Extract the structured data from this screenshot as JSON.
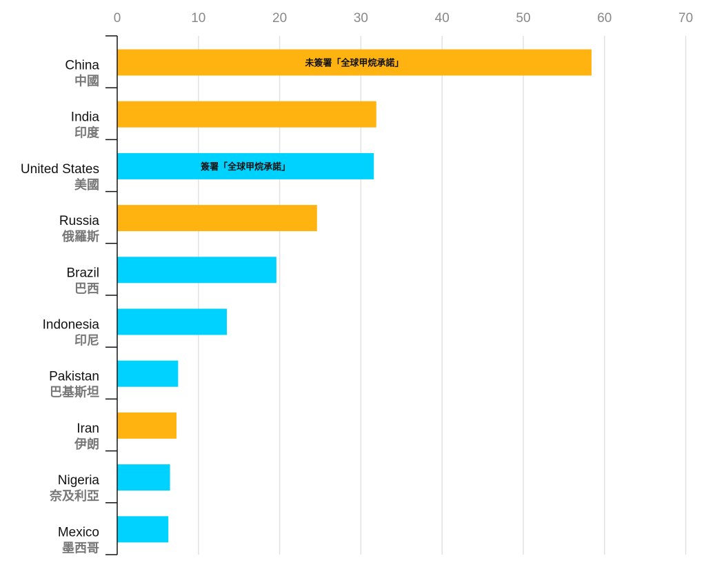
{
  "colors": {
    "not_signed": "#FFB311",
    "signed": "#00D2FF",
    "grid": "#e2e2e2",
    "axis": "#111111"
  },
  "chart_data": {
    "type": "bar",
    "orientation": "horizontal",
    "categories": [
      {
        "en": "China",
        "zh": "中國"
      },
      {
        "en": "India",
        "zh": "印度"
      },
      {
        "en": "United States",
        "zh": "美國"
      },
      {
        "en": "Russia",
        "zh": "俄羅斯"
      },
      {
        "en": "Brazil",
        "zh": "巴西"
      },
      {
        "en": "Indonesia",
        "zh": "印尼"
      },
      {
        "en": "Pakistan",
        "zh": "巴基斯坦"
      },
      {
        "en": "Iran",
        "zh": "伊朗"
      },
      {
        "en": "Nigeria",
        "zh": "奈及利亞"
      },
      {
        "en": "Mexico",
        "zh": "墨西哥"
      }
    ],
    "values": [
      58.4,
      31.9,
      31.6,
      24.6,
      19.6,
      13.5,
      7.5,
      7.3,
      6.5,
      6.3
    ],
    "signed": [
      false,
      false,
      true,
      false,
      true,
      true,
      true,
      false,
      true,
      true
    ],
    "annotations": [
      {
        "category_index": 0,
        "text": "未簽署「全球甲烷承諾」"
      },
      {
        "category_index": 2,
        "text": "簽署「全球甲烷承諾」"
      }
    ],
    "xlim": [
      0,
      70
    ],
    "xticks": [
      0,
      10,
      20,
      30,
      40,
      50,
      60,
      70
    ],
    "grid": true,
    "x_axis_position": "top",
    "title": "",
    "xlabel": "",
    "ylabel": ""
  }
}
